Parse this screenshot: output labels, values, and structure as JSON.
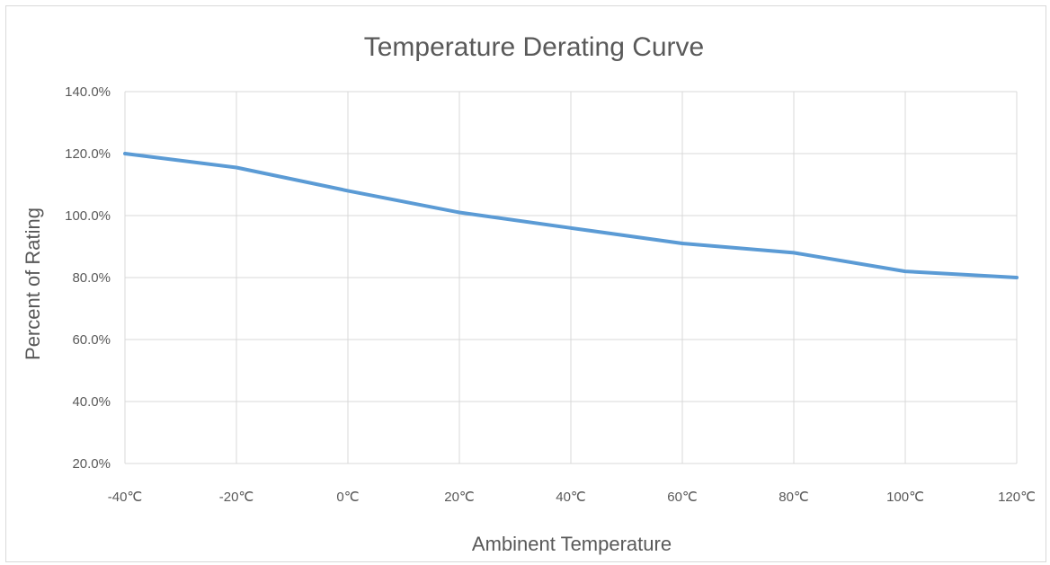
{
  "chart_data": {
    "type": "line",
    "title": "Temperature Derating Curve",
    "xlabel": "Ambinent Temperature",
    "ylabel": "Percent of Rating",
    "categories": [
      "-40℃",
      "-20℃",
      "0℃",
      "20℃",
      "40℃",
      "60℃",
      "80℃",
      "100℃",
      "120℃"
    ],
    "x": [
      -40,
      -20,
      0,
      20,
      40,
      60,
      80,
      100,
      120
    ],
    "values": [
      120,
      115.5,
      108,
      101,
      96,
      91,
      88,
      82,
      80
    ],
    "ylim": [
      20,
      140
    ],
    "yticks": [
      20,
      40,
      60,
      80,
      100,
      120,
      140
    ],
    "ytick_labels": [
      "20.0%",
      "40.0%",
      "60.0%",
      "80.0%",
      "100.0%",
      "120.0%",
      "140.0%"
    ],
    "grid": true,
    "legend": "none",
    "line_color": "#5b9bd5"
  }
}
